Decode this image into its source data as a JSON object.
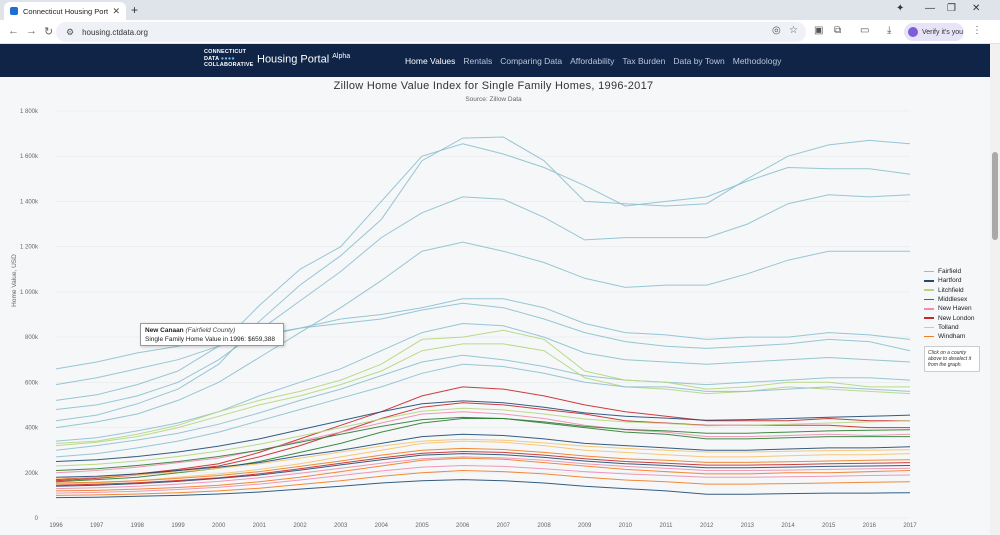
{
  "browser": {
    "tab_title": "Connecticut Housing Portal by",
    "tab_close": "✕",
    "new_tab": "+",
    "url": "housing.ctdata.org",
    "verify_label": "Verify it's you",
    "window_controls": [
      "—",
      "❐",
      "✕"
    ]
  },
  "site": {
    "logo_line1": "CONNECTICUT",
    "logo_line2": "DATA",
    "logo_dots": "●●●●",
    "logo_line3": "COLLABORATIVE",
    "brand": "Housing Portal",
    "brand_sup": "Alpha",
    "menu": [
      "Home Values",
      "Rentals",
      "Comparing Data",
      "Affordability",
      "Tax Burden",
      "Data by Town",
      "Methodology"
    ]
  },
  "tooltip": {
    "town": "New Canaan",
    "county": "(Fairfield County)",
    "text": "Single Family Home Value in 1996: $659,388"
  },
  "legend_note": "Click on a county above to deselect it from the graph.",
  "chart_data": {
    "type": "line",
    "title": "Zillow Home Value Index for Single Family Homes, 1996-2017",
    "subtitle": "Source: Zillow Data",
    "ylabel": "Home Value, USD",
    "xlabel": "",
    "ylim": [
      0,
      1800000
    ],
    "yticks": [
      "0",
      "200k",
      "400k",
      "600k",
      "800k",
      "1 000k",
      "1 200k",
      "1 400k",
      "1 600k",
      "1 800k"
    ],
    "x": [
      1996,
      1997,
      1998,
      1999,
      2000,
      2001,
      2002,
      2003,
      2004,
      2005,
      2006,
      2007,
      2008,
      2009,
      2010,
      2011,
      2012,
      2013,
      2014,
      2015,
      2016,
      2017
    ],
    "legend": [
      {
        "name": "Fairfield",
        "color": "#8cc0cf"
      },
      {
        "name": "Hartford",
        "color": "#1f4b73"
      },
      {
        "name": "Litchfield",
        "color": "#b5d67c"
      },
      {
        "name": "Middlesex",
        "color": "#2e7d32"
      },
      {
        "name": "New Haven",
        "color": "#f08cae"
      },
      {
        "name": "New London",
        "color": "#c62828"
      },
      {
        "name": "Tolland",
        "color": "#f5c36b"
      },
      {
        "name": "Windham",
        "color": "#ef7d22"
      }
    ],
    "series": [
      {
        "county": "Fairfield",
        "values": [
          430000,
          455000,
          505000,
          570000,
          680000,
          870000,
          1030000,
          1160000,
          1320000,
          1580000,
          1680000,
          1685000,
          1580000,
          1400000,
          1390000,
          1380000,
          1390000,
          1500000,
          1600000,
          1650000,
          1670000,
          1655000
        ]
      },
      {
        "county": "Fairfield",
        "values": [
          520000,
          545000,
          590000,
          650000,
          760000,
          940000,
          1100000,
          1200000,
          1400000,
          1600000,
          1655000,
          1610000,
          1550000,
          1470000,
          1380000,
          1400000,
          1420000,
          1490000,
          1550000,
          1545000,
          1545000,
          1520000
        ]
      },
      {
        "county": "Fairfield",
        "values": [
          480000,
          500000,
          540000,
          600000,
          700000,
          830000,
          960000,
          1090000,
          1240000,
          1350000,
          1420000,
          1410000,
          1330000,
          1230000,
          1240000,
          1240000,
          1240000,
          1300000,
          1390000,
          1430000,
          1420000,
          1430000
        ]
      },
      {
        "county": "Fairfield",
        "values": [
          400000,
          425000,
          460000,
          520000,
          600000,
          710000,
          820000,
          930000,
          1050000,
          1180000,
          1220000,
          1180000,
          1130000,
          1060000,
          1020000,
          1030000,
          1030000,
          1080000,
          1140000,
          1180000,
          1180000,
          1180000
        ]
      },
      {
        "county": "Fairfield",
        "values": [
          659388,
          690000,
          730000,
          760000,
          800000,
          810000,
          840000,
          880000,
          900000,
          930000,
          970000,
          970000,
          930000,
          860000,
          820000,
          810000,
          790000,
          800000,
          800000,
          820000,
          810000,
          790000
        ]
      },
      {
        "county": "Fairfield",
        "values": [
          590000,
          620000,
          660000,
          700000,
          760000,
          800000,
          840000,
          860000,
          880000,
          920000,
          950000,
          930000,
          880000,
          820000,
          780000,
          760000,
          750000,
          760000,
          770000,
          790000,
          780000,
          740000
        ]
      },
      {
        "county": "Fairfield",
        "values": [
          340000,
          355000,
          385000,
          420000,
          470000,
          540000,
          600000,
          660000,
          740000,
          820000,
          860000,
          850000,
          800000,
          730000,
          700000,
          690000,
          680000,
          690000,
          700000,
          710000,
          700000,
          690000
        ]
      },
      {
        "county": "Fairfield",
        "values": [
          300000,
          320000,
          345000,
          375000,
          415000,
          465000,
          520000,
          570000,
          630000,
          690000,
          720000,
          700000,
          670000,
          630000,
          610000,
          600000,
          590000,
          600000,
          610000,
          620000,
          620000,
          610000
        ]
      },
      {
        "county": "Litchfield",
        "values": [
          330000,
          340000,
          370000,
          410000,
          470000,
          520000,
          560000,
          610000,
          680000,
          790000,
          800000,
          830000,
          790000,
          650000,
          610000,
          600000,
          570000,
          580000,
          600000,
          600000,
          580000,
          580000
        ]
      },
      {
        "county": "Litchfield",
        "values": [
          320000,
          335000,
          360000,
          400000,
          450000,
          500000,
          540000,
          590000,
          650000,
          740000,
          770000,
          770000,
          740000,
          620000,
          580000,
          570000,
          550000,
          560000,
          580000,
          570000,
          560000,
          550000
        ]
      },
      {
        "county": "Fairfield",
        "values": [
          270000,
          285000,
          310000,
          340000,
          380000,
          430000,
          480000,
          530000,
          580000,
          640000,
          680000,
          670000,
          640000,
          600000,
          580000,
          580000,
          560000,
          560000,
          570000,
          580000,
          570000,
          560000
        ]
      },
      {
        "county": "New London",
        "values": [
          170000,
          180000,
          195000,
          215000,
          240000,
          290000,
          350000,
          410000,
          470000,
          540000,
          580000,
          570000,
          540000,
          500000,
          470000,
          450000,
          430000,
          430000,
          430000,
          440000,
          430000,
          430000
        ]
      },
      {
        "county": "New London",
        "values": [
          165000,
          175000,
          190000,
          210000,
          230000,
          270000,
          320000,
          380000,
          440000,
          490000,
          510000,
          500000,
          480000,
          460000,
          430000,
          420000,
          410000,
          410000,
          410000,
          410000,
          400000,
          400000
        ]
      },
      {
        "county": "Middlesex",
        "values": [
          160000,
          170000,
          180000,
          200000,
          220000,
          250000,
          290000,
          330000,
          380000,
          420000,
          440000,
          440000,
          420000,
          400000,
          380000,
          370000,
          350000,
          350000,
          355000,
          360000,
          360000,
          360000
        ]
      },
      {
        "county": "New Haven",
        "values": [
          200000,
          210000,
          225000,
          245000,
          265000,
          300000,
          340000,
          380000,
          420000,
          460000,
          470000,
          460000,
          440000,
          410000,
          390000,
          380000,
          360000,
          360000,
          365000,
          370000,
          365000,
          370000
        ]
      },
      {
        "county": "Hartford",
        "values": [
          180000,
          185000,
          195000,
          210000,
          225000,
          245000,
          275000,
          300000,
          330000,
          360000,
          370000,
          365000,
          350000,
          330000,
          320000,
          310000,
          300000,
          300000,
          305000,
          310000,
          310000,
          315000
        ]
      },
      {
        "county": "Tolland",
        "values": [
          150000,
          155000,
          165000,
          180000,
          195000,
          215000,
          240000,
          270000,
          300000,
          330000,
          340000,
          335000,
          320000,
          300000,
          290000,
          280000,
          270000,
          270000,
          275000,
          280000,
          280000,
          285000
        ]
      },
      {
        "county": "Windham",
        "values": [
          120000,
          122000,
          128000,
          135000,
          145000,
          160000,
          180000,
          205000,
          230000,
          255000,
          265000,
          260000,
          245000,
          230000,
          215000,
          205000,
          195000,
          195000,
          200000,
          200000,
          205000,
          210000
        ]
      },
      {
        "county": "Hartford",
        "values": [
          140000,
          145000,
          152000,
          162000,
          175000,
          190000,
          212000,
          235000,
          258000,
          278000,
          285000,
          280000,
          268000,
          252000,
          240000,
          232000,
          222000,
          222000,
          225000,
          228000,
          230000,
          232000
        ]
      },
      {
        "county": "Windham",
        "values": [
          100000,
          102000,
          106000,
          112000,
          120000,
          132000,
          148000,
          165000,
          185000,
          200000,
          210000,
          205000,
          195000,
          180000,
          168000,
          160000,
          150000,
          150000,
          152000,
          155000,
          158000,
          160000
        ]
      },
      {
        "county": "Hartford",
        "values": [
          90000,
          92000,
          96000,
          100000,
          106000,
          115000,
          128000,
          140000,
          155000,
          165000,
          170000,
          165000,
          155000,
          140000,
          130000,
          120000,
          105000,
          105000,
          108000,
          110000,
          110000,
          112000
        ]
      },
      {
        "county": "New Haven",
        "values": [
          130000,
          134000,
          140000,
          150000,
          162000,
          178000,
          198000,
          220000,
          242000,
          262000,
          270000,
          266000,
          255000,
          240000,
          228000,
          220000,
          210000,
          210000,
          212000,
          215000,
          218000,
          220000
        ]
      },
      {
        "county": "Middlesex",
        "values": [
          210000,
          218000,
          232000,
          250000,
          272000,
          300000,
          335000,
          370000,
          405000,
          435000,
          445000,
          440000,
          425000,
          405000,
          392000,
          385000,
          375000,
          375000,
          380000,
          385000,
          388000,
          390000
        ]
      },
      {
        "county": "Litchfield",
        "values": [
          230000,
          238000,
          252000,
          272000,
          296000,
          326000,
          362000,
          400000,
          438000,
          472000,
          485000,
          478000,
          460000,
          438000,
          425000,
          418000,
          408000,
          410000,
          415000,
          420000,
          425000,
          430000
        ]
      },
      {
        "county": "Tolland",
        "values": [
          175000,
          180000,
          190000,
          204000,
          220000,
          240000,
          265000,
          292000,
          318000,
          340000,
          348000,
          344000,
          332000,
          318000,
          308000,
          300000,
          292000,
          292000,
          295000,
          298000,
          300000,
          302000
        ]
      },
      {
        "county": "Hartford",
        "values": [
          250000,
          258000,
          272000,
          292000,
          318000,
          350000,
          390000,
          430000,
          470000,
          505000,
          518000,
          510000,
          490000,
          465000,
          450000,
          442000,
          432000,
          435000,
          440000,
          446000,
          450000,
          455000
        ]
      },
      {
        "county": "New Haven",
        "values": [
          110000,
          113000,
          118000,
          126000,
          136000,
          150000,
          168000,
          188000,
          208000,
          225000,
          232000,
          228000,
          218000,
          205000,
          195000,
          188000,
          180000,
          180000,
          182000,
          185000,
          188000,
          190000
        ]
      },
      {
        "county": "New London",
        "values": [
          145000,
          149000,
          156000,
          166000,
          178000,
          195000,
          218000,
          242000,
          266000,
          286000,
          294000,
          290000,
          278000,
          262000,
          250000,
          242000,
          234000,
          234000,
          236000,
          240000,
          242000,
          245000
        ]
      },
      {
        "county": "Windham",
        "values": [
          155000,
          158000,
          165000,
          175000,
          188000,
          205000,
          228000,
          252000,
          278000,
          300000,
          308000,
          303000,
          290000,
          274000,
          262000,
          255000,
          246000,
          246000,
          249000,
          252000,
          255000,
          258000
        ]
      }
    ]
  }
}
